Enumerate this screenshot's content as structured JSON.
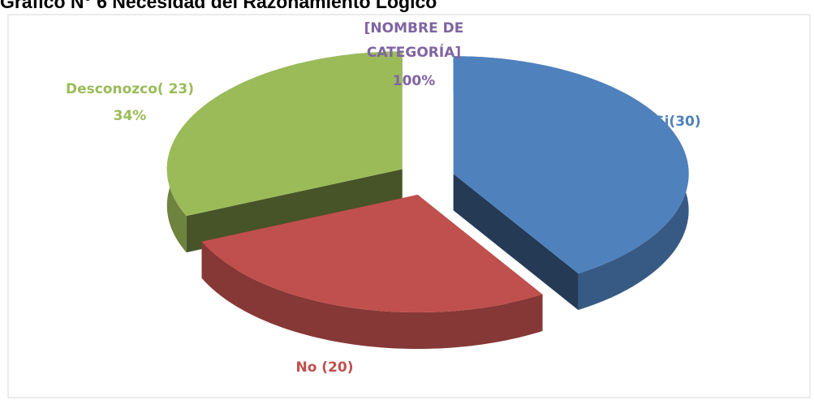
{
  "chart_data": {
    "type": "pie3d",
    "title": "Gráfico N° 6 Necesidad del Razonamiento Lógico",
    "categories": [
      "Si(30)",
      "No (20)",
      "Desconozco( 23)"
    ],
    "values": [
      30,
      20,
      23
    ],
    "colors": [
      "#4f81bd",
      "#c0504d",
      "#9bbb59"
    ],
    "label_colors": [
      "#4f81bd",
      "#c0504d",
      "#9bbb59"
    ],
    "annotations": [
      "34%",
      "[NOMBRE DE",
      "CATEGORÍA]",
      "100%"
    ]
  }
}
